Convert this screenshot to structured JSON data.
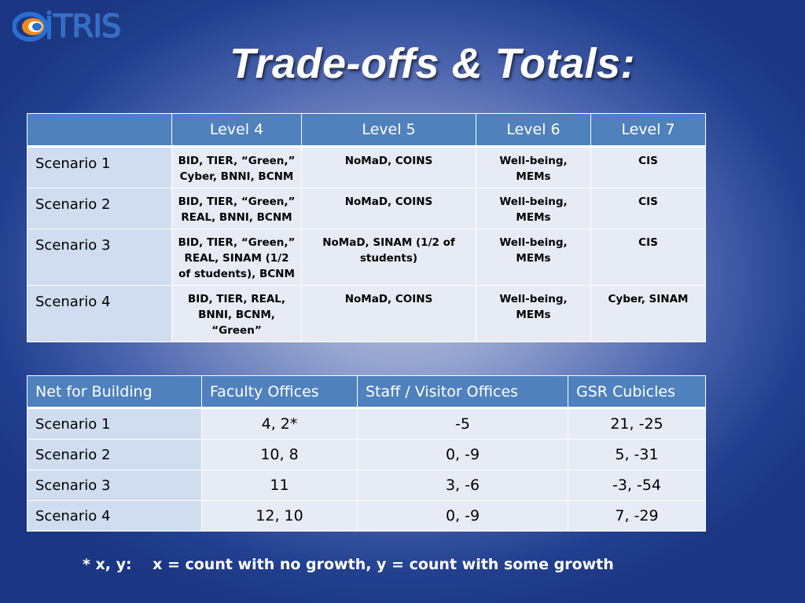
{
  "logo": {
    "text": "TRIS",
    "icon": "itris-swirl-logo"
  },
  "title": "Trade-offs & Totals:",
  "table1": {
    "corner": "",
    "headers": [
      "Level 4",
      "Level 5",
      "Level 6",
      "Level 7"
    ],
    "rows": [
      {
        "label": "Scenario 1",
        "cells": [
          "BID, TIER, “Green,” Cyber, BNNI, BCNM",
          "NoMaD, COINS",
          "Well-being, MEMs",
          "CIS"
        ]
      },
      {
        "label": "Scenario 2",
        "cells": [
          "BID, TIER, “Green,” REAL, BNNI, BCNM",
          "NoMaD, COINS",
          "Well-being, MEMs",
          "CIS"
        ]
      },
      {
        "label": "Scenario 3",
        "cells": [
          "BID, TIER, “Green,” REAL, SINAM (1/2 of students), BCNM",
          "NoMaD, SINAM (1/2 of students)",
          "Well-being, MEMs",
          "CIS"
        ]
      },
      {
        "label": "Scenario 4",
        "cells": [
          "BID, TIER, REAL, BNNI, BCNM, “Green”",
          "NoMaD, COINS",
          "Well-being, MEMs",
          "Cyber, SINAM"
        ]
      }
    ]
  },
  "table2": {
    "headers": [
      "Net for  Building",
      "Faculty Offices",
      "Staff / Visitor Offices",
      "GSR Cubicles"
    ],
    "rows": [
      {
        "label": "Scenario 1",
        "cells": [
          "4, 2*",
          "-5",
          "21, -25"
        ]
      },
      {
        "label": "Scenario 2",
        "cells": [
          "10, 8",
          "0, -9",
          "5, -31"
        ]
      },
      {
        "label": "Scenario 3",
        "cells": [
          "11",
          "3, -6",
          "-3, -54"
        ]
      },
      {
        "label": "Scenario 4",
        "cells": [
          "12, 10",
          "0, -9",
          "7, -29"
        ]
      }
    ]
  },
  "footnote": "* x, y:    x = count with no growth, y = count with some growth",
  "colors": {
    "header_blue": "#4f81bd",
    "row_label_bg": "#d0ddf0",
    "cell_bg": "#e6ebf5",
    "background_dark": "#1b3682",
    "background_light": "#c2cbe4",
    "logo_blue": "#2a6fd0",
    "logo_orange": "#f08a1c"
  }
}
